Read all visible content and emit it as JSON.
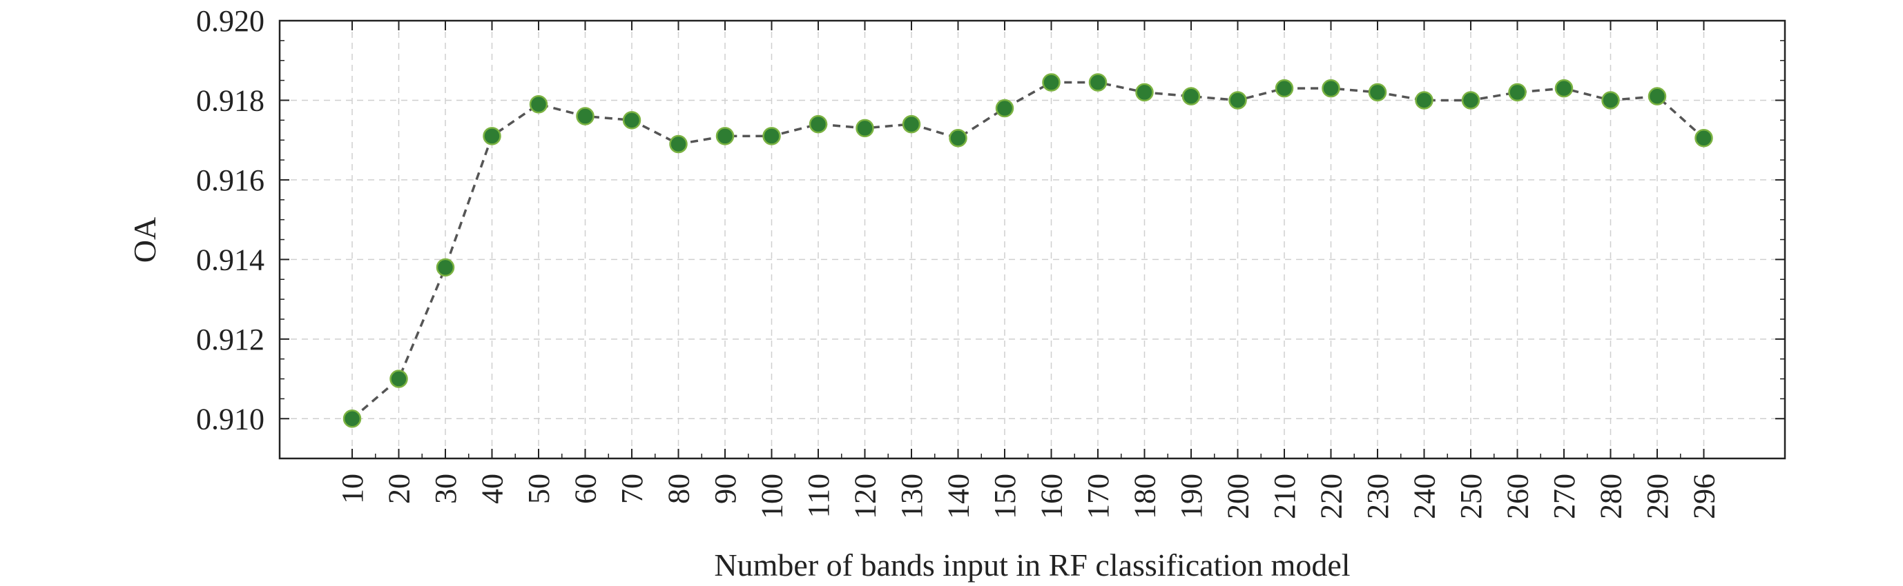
{
  "chart_data": {
    "type": "line",
    "xlabel": "Number of bands input in RF classification model",
    "ylabel": "OA",
    "categories": [
      "10",
      "20",
      "30",
      "40",
      "50",
      "60",
      "70",
      "80",
      "90",
      "100",
      "110",
      "120",
      "130",
      "140",
      "150",
      "160",
      "170",
      "180",
      "190",
      "200",
      "210",
      "220",
      "230",
      "240",
      "250",
      "260",
      "270",
      "280",
      "290",
      "296"
    ],
    "values": [
      0.91,
      0.911,
      0.9138,
      0.9171,
      0.9179,
      0.9176,
      0.9175,
      0.9169,
      0.9171,
      0.9171,
      0.9174,
      0.9173,
      0.9174,
      0.91705,
      0.9178,
      0.91845,
      0.91845,
      0.9182,
      0.9181,
      0.918,
      0.9183,
      0.9183,
      0.9182,
      0.918,
      0.918,
      0.9182,
      0.9183,
      0.918,
      0.9181,
      0.91705
    ],
    "yticks": [
      "0.910",
      "0.912",
      "0.914",
      "0.916",
      "0.918",
      "0.920"
    ],
    "ylim": [
      0.909,
      0.92
    ],
    "grid": true,
    "marker_color": "#2e7d32",
    "marker_edge_color": "#7cb342",
    "line_color": "#555555",
    "line_style": "dashed"
  }
}
